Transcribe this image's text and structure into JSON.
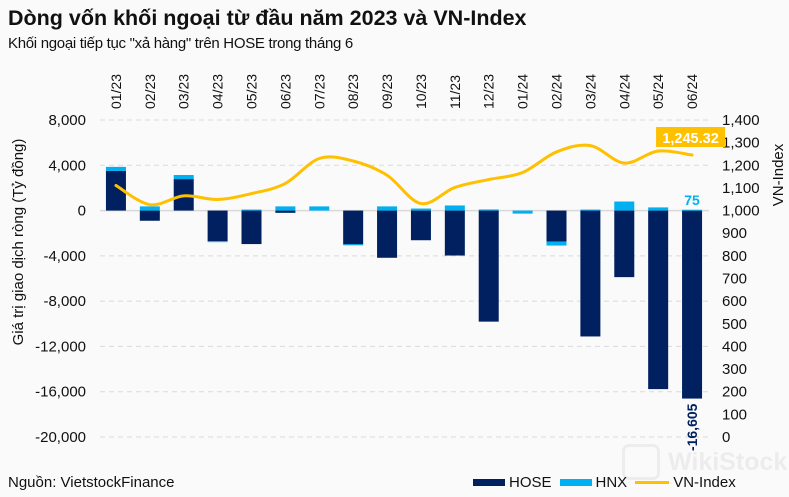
{
  "header": {
    "title": "Dòng vốn khối ngoại từ đầu năm 2023 và VN-Index",
    "subtitle": "Khối ngoại tiếp tục \"xả hàng\" trên HOSE trong tháng 6"
  },
  "source": "Nguồn: VietstockFinance",
  "watermark": "WikiStock",
  "colors": {
    "hose": "#002060",
    "hnx": "#00B0F0",
    "vnindex": "#FFC000",
    "grid": "#D9D9D9",
    "background": "#FAFAFA"
  },
  "chart_data": {
    "type": "bar",
    "title": "Dòng vốn khối ngoại từ đầu năm 2023 và VN-Index",
    "subtitle": "Khối ngoại tiếp tục \"xả hàng\" trên HOSE trong tháng 6",
    "categories": [
      "01/23",
      "02/23",
      "03/23",
      "04/23",
      "05/23",
      "06/23",
      "07/23",
      "08/23",
      "09/23",
      "10/23",
      "11/23",
      "12/23",
      "01/24",
      "02/24",
      "03/24",
      "04/24",
      "05/24",
      "06/24"
    ],
    "series": [
      {
        "name": "HOSE",
        "type": "bar",
        "stacked": true,
        "axis": "left",
        "values": [
          3500,
          -900,
          2780,
          -2700,
          -2960,
          -200,
          0,
          -2980,
          -4170,
          -2620,
          -3970,
          -9810,
          0,
          -2730,
          -11120,
          -5880,
          -15770,
          -16605
        ]
      },
      {
        "name": "HNX",
        "type": "bar",
        "stacked": true,
        "axis": "left",
        "values": [
          360,
          370,
          360,
          -90,
          90,
          370,
          370,
          -90,
          370,
          180,
          450,
          100,
          -270,
          -360,
          90,
          800,
          280,
          75
        ]
      },
      {
        "name": "VN-Index",
        "type": "line",
        "axis": "right",
        "values": [
          1111,
          1026,
          1065,
          1049,
          1075,
          1120,
          1230,
          1219,
          1156,
          1031,
          1102,
          1137,
          1168,
          1259,
          1287,
          1210,
          1263,
          1245.32
        ]
      }
    ],
    "xlabel": "",
    "ylabel": "Giá trị giao dịch ròng (Tỷ đồng)",
    "y2label": "VN-Index",
    "ylim": [
      -20000,
      8000
    ],
    "yticks": [
      8000,
      4000,
      0,
      -4000,
      -8000,
      -12000,
      -16000,
      -20000
    ],
    "ytick_labels": [
      "8,000",
      "4,000",
      "0",
      "-4,000",
      "-8,000",
      "-12,000",
      "-16,000",
      "-20,000"
    ],
    "y2lim": [
      0,
      1400
    ],
    "y2ticks": [
      1400,
      1300,
      1200,
      1100,
      1000,
      900,
      800,
      700,
      600,
      500,
      400,
      300,
      200,
      100,
      0
    ],
    "y2tick_labels": [
      "1,400",
      "1,300",
      "1,200",
      "1,100",
      "1,000",
      "900",
      "800",
      "700",
      "600",
      "500",
      "400",
      "300",
      "200",
      "100",
      "0"
    ],
    "grid": true,
    "category_axis_position": "top",
    "legend": {
      "position": "bottom-right",
      "entries": [
        "HOSE",
        "HNX",
        "VN-Index"
      ]
    },
    "annotations": [
      {
        "text": "1,245.32",
        "series": "VN-Index",
        "category": "06/24",
        "style": "boxed"
      },
      {
        "text": "75",
        "series": "HNX",
        "category": "06/24"
      },
      {
        "text": "-16,605",
        "series": "HOSE",
        "category": "06/24"
      }
    ]
  }
}
